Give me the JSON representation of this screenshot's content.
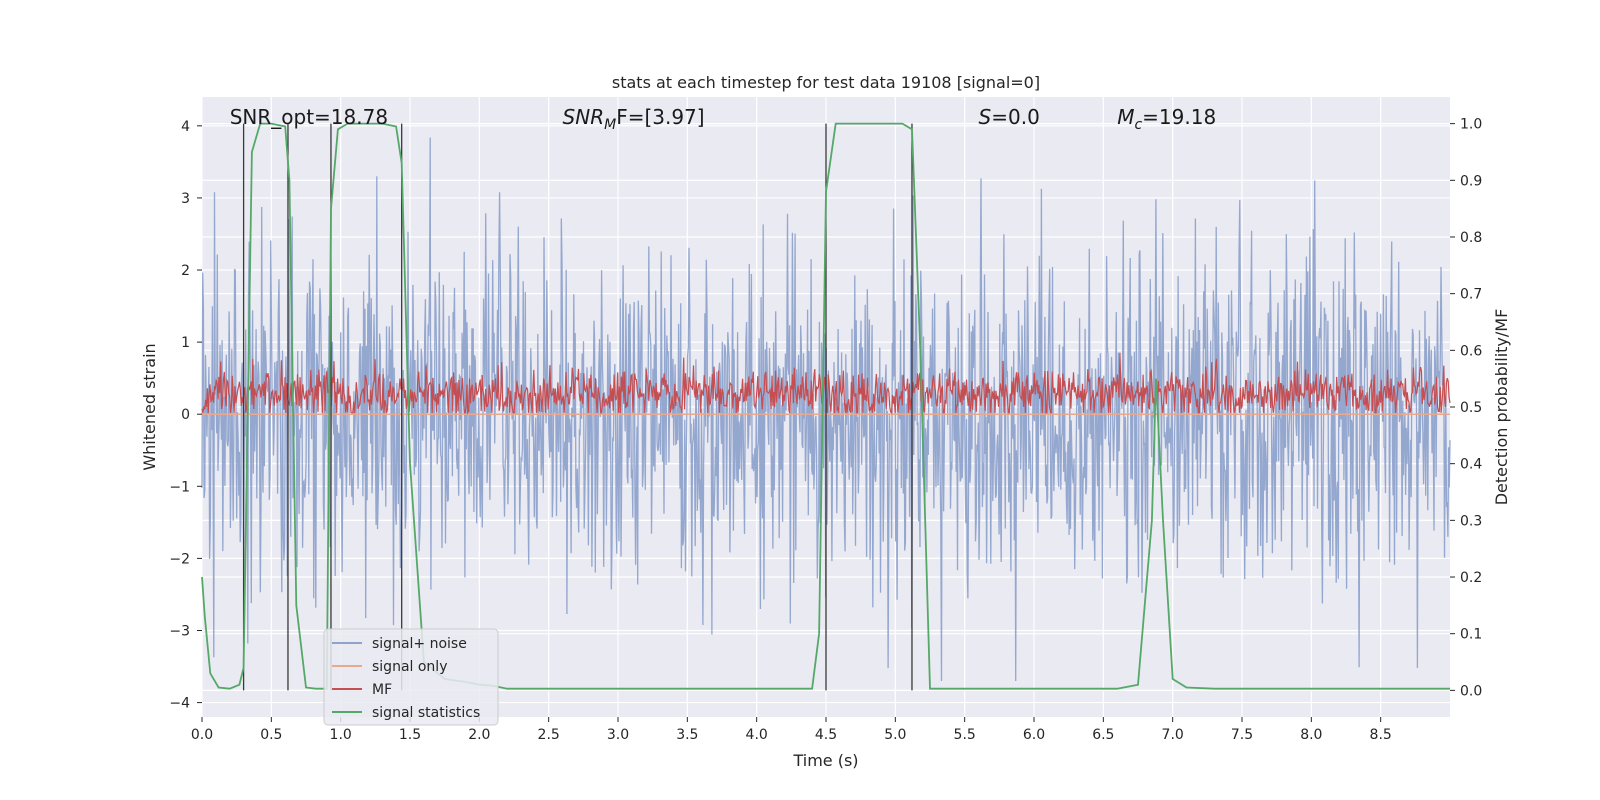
{
  "chart_data": {
    "type": "line",
    "title": "stats at each timestep for test data 19108 [signal=0]",
    "xlabel": "Time (s)",
    "ylabel": "Whitened strain",
    "y2label": "Detection probability/MF",
    "xlim": [
      0,
      9.0
    ],
    "ylim": [
      -4.2,
      4.4
    ],
    "y2lim": [
      -0.047,
      1.047
    ],
    "x_ticks": [
      0.0,
      0.5,
      1.0,
      1.5,
      2.0,
      2.5,
      3.0,
      3.5,
      4.0,
      4.5,
      5.0,
      5.5,
      6.0,
      6.5,
      7.0,
      7.5,
      8.0,
      8.5
    ],
    "x_tick_labels": [
      "0.0",
      "0.5",
      "1.0",
      "1.5",
      "2.0",
      "2.5",
      "3.0",
      "3.5",
      "4.0",
      "4.5",
      "5.0",
      "5.5",
      "6.0",
      "6.5",
      "7.0",
      "7.5",
      "8.0",
      "8.5"
    ],
    "y_ticks": [
      4,
      3,
      2,
      1,
      0,
      -1,
      -2,
      -3,
      -4
    ],
    "y_tick_labels": [
      "4",
      "3",
      "2",
      "1",
      "0",
      "−1",
      "−2",
      "−3",
      "−4"
    ],
    "y2_ticks": [
      1.0,
      0.9,
      0.8,
      0.7,
      0.6,
      0.5,
      0.4,
      0.3,
      0.2,
      0.1,
      0.0
    ],
    "y2_tick_labels": [
      "1.0",
      "0.9",
      "0.8",
      "0.7",
      "0.6",
      "0.5",
      "0.4",
      "0.3",
      "0.2",
      "0.1",
      "0.0"
    ],
    "grid": true,
    "legend_position": "lower-left",
    "annotations": [
      {
        "text": "SNR_opt=18.78",
        "x": 0.2
      },
      {
        "main": "SNR",
        "sub": "M",
        "rest": "F=[3.97]",
        "x": 2.6
      },
      {
        "main": "S",
        "sub": "",
        "rest": "=0.0",
        "x": 5.6
      },
      {
        "main": "M",
        "sub": "c",
        "rest": "=19.18",
        "x": 6.6
      }
    ],
    "vertical_lines_x": [
      0.3,
      0.62,
      0.93,
      1.44,
      4.5,
      5.12
    ],
    "series": [
      {
        "name": "signal+ noise",
        "color": "#8fa3cc",
        "kind": "noise",
        "amplitude_range": [
          -3.7,
          4.0
        ]
      },
      {
        "name": "signal only",
        "color": "#e8a98f",
        "kind": "flat",
        "value": 0.0
      },
      {
        "name": "MF",
        "color": "#c44e52",
        "kind": "noise-positive",
        "amplitude_range": [
          0.0,
          1.0
        ]
      },
      {
        "name": "signal statistics",
        "color": "#55a868",
        "kind": "probability",
        "x": [
          0.0,
          0.02,
          0.06,
          0.12,
          0.2,
          0.27,
          0.3,
          0.36,
          0.42,
          0.5,
          0.6,
          0.63,
          0.68,
          0.75,
          0.82,
          0.9,
          0.93,
          0.98,
          1.05,
          1.15,
          1.3,
          1.4,
          1.44,
          1.5,
          1.6,
          1.75,
          1.9,
          2.0,
          2.1,
          2.2,
          2.5,
          3.0,
          3.5,
          4.0,
          4.4,
          4.45,
          4.5,
          4.57,
          4.8,
          5.05,
          5.12,
          5.18,
          5.25,
          5.4,
          5.8,
          6.2,
          6.6,
          6.75,
          6.85,
          6.88,
          6.93,
          7.0,
          7.1,
          7.3,
          8.0,
          9.0
        ],
        "y": [
          0.2,
          0.13,
          0.03,
          0.005,
          0.003,
          0.01,
          0.04,
          0.95,
          1.0,
          1.0,
          0.995,
          0.9,
          0.15,
          0.005,
          0.003,
          0.003,
          0.85,
          0.99,
          1.0,
          1.0,
          1.0,
          0.995,
          0.93,
          0.4,
          0.05,
          0.02,
          0.015,
          0.01,
          0.008,
          0.003,
          0.003,
          0.003,
          0.003,
          0.003,
          0.003,
          0.1,
          0.88,
          1.0,
          1.0,
          1.0,
          0.99,
          0.6,
          0.003,
          0.003,
          0.003,
          0.003,
          0.003,
          0.01,
          0.3,
          0.55,
          0.3,
          0.02,
          0.005,
          0.003,
          0.003,
          0.003
        ]
      }
    ]
  }
}
